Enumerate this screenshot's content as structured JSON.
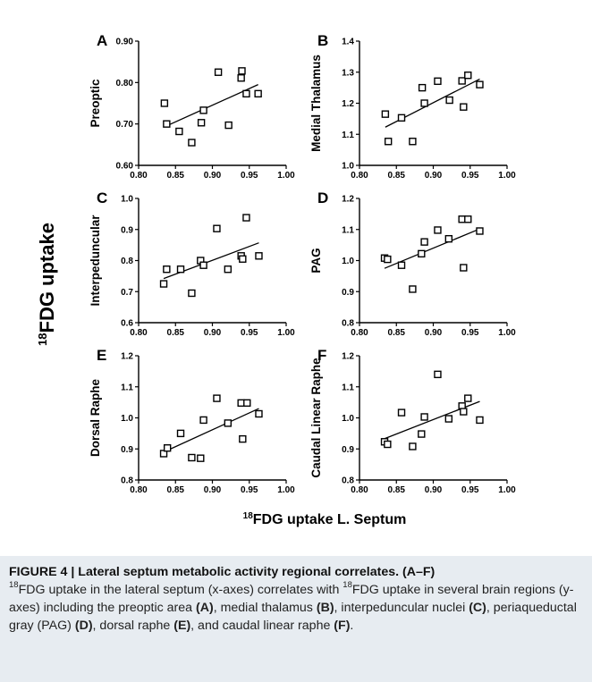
{
  "figure": {
    "shared_ylabel_sup": "18",
    "shared_ylabel_main": "FDG uptake",
    "shared_xlabel_sup": "18",
    "shared_xlabel_main": "FDG uptake L. Septum"
  },
  "chart_data": [
    {
      "type": "scatter",
      "panel_letter": "A",
      "ylabel": "Preoptic",
      "xlim": [
        0.8,
        1.0
      ],
      "ylim": [
        0.6,
        0.9
      ],
      "xticks": [
        "0.80",
        "0.85",
        "0.90",
        "0.95",
        "1.00"
      ],
      "yticks": [
        "0.60",
        "0.70",
        "0.80",
        "0.90"
      ],
      "points": [
        [
          0.835,
          0.75
        ],
        [
          0.838,
          0.7
        ],
        [
          0.855,
          0.682
        ],
        [
          0.872,
          0.655
        ],
        [
          0.885,
          0.703
        ],
        [
          0.888,
          0.733
        ],
        [
          0.908,
          0.825
        ],
        [
          0.922,
          0.697
        ],
        [
          0.939,
          0.811
        ],
        [
          0.94,
          0.828
        ],
        [
          0.946,
          0.773
        ],
        [
          0.962,
          0.773
        ]
      ],
      "fit": [
        [
          0.835,
          0.693
        ],
        [
          0.962,
          0.795
        ]
      ]
    },
    {
      "type": "scatter",
      "panel_letter": "B",
      "ylabel": "Medial Thalamus",
      "xlim": [
        0.8,
        1.0
      ],
      "ylim": [
        1.0,
        1.4
      ],
      "xticks": [
        "0.80",
        "0.85",
        "0.90",
        "0.95",
        "1.00"
      ],
      "yticks": [
        "1.0",
        "1.1",
        "1.2",
        "1.3",
        "1.4"
      ],
      "points": [
        [
          0.835,
          1.165
        ],
        [
          0.839,
          1.077
        ],
        [
          0.857,
          1.153
        ],
        [
          0.872,
          1.077
        ],
        [
          0.885,
          1.25
        ],
        [
          0.888,
          1.2
        ],
        [
          0.906,
          1.271
        ],
        [
          0.922,
          1.21
        ],
        [
          0.939,
          1.272
        ],
        [
          0.941,
          1.188
        ],
        [
          0.947,
          1.29
        ],
        [
          0.963,
          1.26
        ]
      ],
      "fit": [
        [
          0.835,
          1.123
        ],
        [
          0.963,
          1.278
        ]
      ]
    },
    {
      "type": "scatter",
      "panel_letter": "C",
      "ylabel": "Interpeduncular",
      "xlim": [
        0.8,
        1.0
      ],
      "ylim": [
        0.6,
        1.0
      ],
      "xticks": [
        "0.80",
        "0.85",
        "0.90",
        "0.95",
        "1.00"
      ],
      "yticks": [
        "0.6",
        "0.7",
        "0.8",
        "0.9",
        "1.0"
      ],
      "points": [
        [
          0.834,
          0.725
        ],
        [
          0.838,
          0.772
        ],
        [
          0.857,
          0.772
        ],
        [
          0.872,
          0.695
        ],
        [
          0.884,
          0.8
        ],
        [
          0.888,
          0.785
        ],
        [
          0.906,
          0.903
        ],
        [
          0.921,
          0.772
        ],
        [
          0.939,
          0.815
        ],
        [
          0.941,
          0.805
        ],
        [
          0.946,
          0.938
        ],
        [
          0.963,
          0.815
        ]
      ],
      "fit": [
        [
          0.834,
          0.742
        ],
        [
          0.963,
          0.857
        ]
      ]
    },
    {
      "type": "scatter",
      "panel_letter": "D",
      "ylabel": "PAG",
      "xlim": [
        0.8,
        1.0
      ],
      "ylim": [
        0.8,
        1.2
      ],
      "xticks": [
        "0.80",
        "0.85",
        "0.90",
        "0.95",
        "1.00"
      ],
      "yticks": [
        "0.8",
        "0.9",
        "1.0",
        "1.1",
        "1.2"
      ],
      "points": [
        [
          0.834,
          1.008
        ],
        [
          0.838,
          1.004
        ],
        [
          0.857,
          0.985
        ],
        [
          0.872,
          0.908
        ],
        [
          0.884,
          1.022
        ],
        [
          0.888,
          1.06
        ],
        [
          0.906,
          1.098
        ],
        [
          0.921,
          1.07
        ],
        [
          0.939,
          1.133
        ],
        [
          0.941,
          0.977
        ],
        [
          0.947,
          1.133
        ],
        [
          0.963,
          1.095
        ]
      ],
      "fit": [
        [
          0.834,
          0.975
        ],
        [
          0.963,
          1.102
        ]
      ]
    },
    {
      "type": "scatter",
      "panel_letter": "E",
      "ylabel": "Dorsal Raphe",
      "xlim": [
        0.8,
        1.0
      ],
      "ylim": [
        0.8,
        1.2
      ],
      "xticks": [
        "0.80",
        "0.85",
        "0.90",
        "0.95",
        "1.00"
      ],
      "yticks": [
        "0.8",
        "0.9",
        "1.0",
        "1.1",
        "1.2"
      ],
      "points": [
        [
          0.834,
          0.885
        ],
        [
          0.839,
          0.903
        ],
        [
          0.857,
          0.95
        ],
        [
          0.872,
          0.872
        ],
        [
          0.884,
          0.87
        ],
        [
          0.888,
          0.993
        ],
        [
          0.906,
          1.063
        ],
        [
          0.921,
          0.983
        ],
        [
          0.939,
          1.048
        ],
        [
          0.941,
          0.932
        ],
        [
          0.947,
          1.048
        ],
        [
          0.963,
          1.013
        ]
      ],
      "fit": [
        [
          0.834,
          0.89
        ],
        [
          0.963,
          1.03
        ]
      ]
    },
    {
      "type": "scatter",
      "panel_letter": "F",
      "ylabel": "Caudal Linear Raphe",
      "xlim": [
        0.8,
        1.0
      ],
      "ylim": [
        0.8,
        1.2
      ],
      "xticks": [
        "0.80",
        "0.85",
        "0.90",
        "0.95",
        "1.00"
      ],
      "yticks": [
        "0.8",
        "0.9",
        "1.0",
        "1.1",
        "1.2"
      ],
      "points": [
        [
          0.834,
          0.923
        ],
        [
          0.838,
          0.915
        ],
        [
          0.857,
          1.017
        ],
        [
          0.872,
          0.908
        ],
        [
          0.884,
          0.948
        ],
        [
          0.888,
          1.003
        ],
        [
          0.906,
          1.14
        ],
        [
          0.921,
          0.997
        ],
        [
          0.939,
          1.038
        ],
        [
          0.941,
          1.02
        ],
        [
          0.947,
          1.063
        ],
        [
          0.963,
          0.993
        ]
      ],
      "fit": [
        [
          0.834,
          0.933
        ],
        [
          0.963,
          1.053
        ]
      ]
    }
  ],
  "caption": {
    "title": "FIGURE 4 | Lateral septum metabolic activity regional correlates. (A–F)",
    "sup1": "18",
    "text1": "FDG uptake in the lateral septum (x-axes) correlates with ",
    "sup2": "18",
    "text2": "FDG uptake in several brain regions (y-axes) including the preoptic area ",
    "ref_a": "(A)",
    "text3": ", medial thalamus ",
    "ref_b": "(B)",
    "text4": ", interpeduncular nuclei ",
    "ref_c": "(C)",
    "text5": ", periaqueductal gray (PAG) ",
    "ref_d": "(D)",
    "text6": ", dorsal raphe ",
    "ref_e": "(E)",
    "text7": ", and caudal linear raphe ",
    "ref_f": "(F)",
    "text8": "."
  }
}
